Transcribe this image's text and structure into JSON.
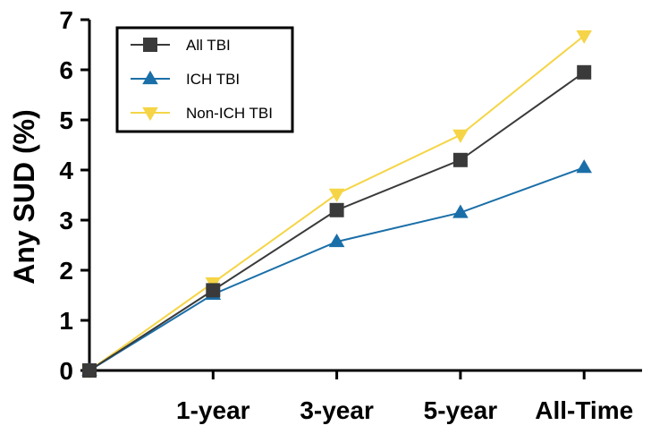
{
  "chart_data": {
    "type": "line",
    "title": "",
    "xlabel": "",
    "ylabel": "Any SUD (%)",
    "categories": [
      "",
      "1-year",
      "3-year",
      "5-year",
      "All-Time"
    ],
    "ylim": [
      0,
      7
    ],
    "yticks": [
      0,
      1,
      2,
      3,
      4,
      5,
      6,
      7
    ],
    "grid": false,
    "legend_position": "top-left",
    "series": [
      {
        "name": "All TBI",
        "values": [
          0,
          1.6,
          3.2,
          4.2,
          5.95
        ],
        "color": "#3a3a3a",
        "marker": "square"
      },
      {
        "name": "ICH TBI",
        "values": [
          0,
          1.52,
          2.57,
          3.15,
          4.05
        ],
        "color": "#1a6fa8",
        "marker": "triangle-up"
      },
      {
        "name": "Non-ICH TBI",
        "values": [
          0,
          1.75,
          3.52,
          4.7,
          6.68
        ],
        "color": "#f5d547",
        "marker": "triangle-down"
      }
    ]
  }
}
